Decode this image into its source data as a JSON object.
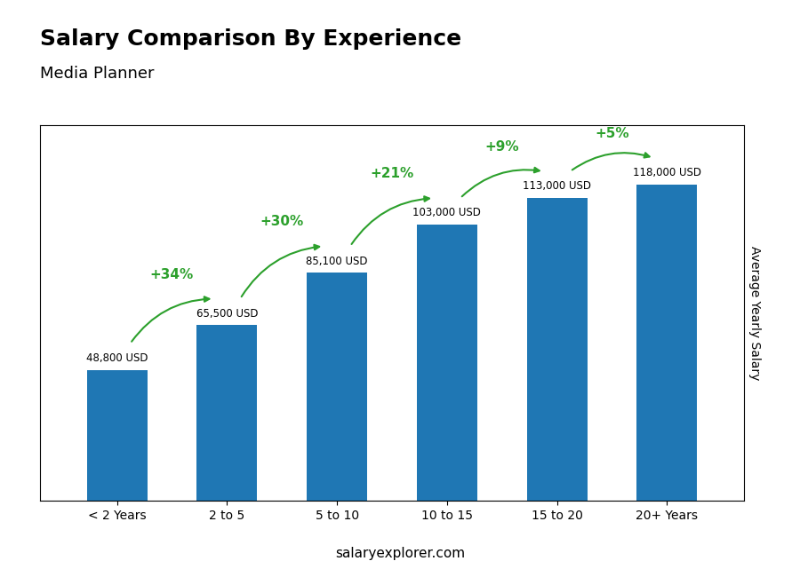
{
  "chart_data": {
    "type": "bar",
    "title": "Salary Comparison By Experience",
    "subtitle": "Media Planner",
    "y_label": "Average Yearly Salary",
    "categories": [
      "< 2 Years",
      "2 to 5",
      "5 to 10",
      "10 to 15",
      "15 to 20",
      "20+ Years"
    ],
    "values": [
      48800,
      65500,
      85100,
      103000,
      113000,
      118000
    ],
    "value_labels": [
      "48,800 USD",
      "65,500 USD",
      "85,100 USD",
      "103,000 USD",
      "113,000 USD",
      "118,000 USD"
    ],
    "data_labels": true,
    "annotations": [
      "+34%",
      "+30%",
      "+21%",
      "+9%",
      "+5%"
    ],
    "watermark": "salaryexplorer.com",
    "ylim": [
      0,
      140000
    ],
    "tick_labels": "x"
  }
}
